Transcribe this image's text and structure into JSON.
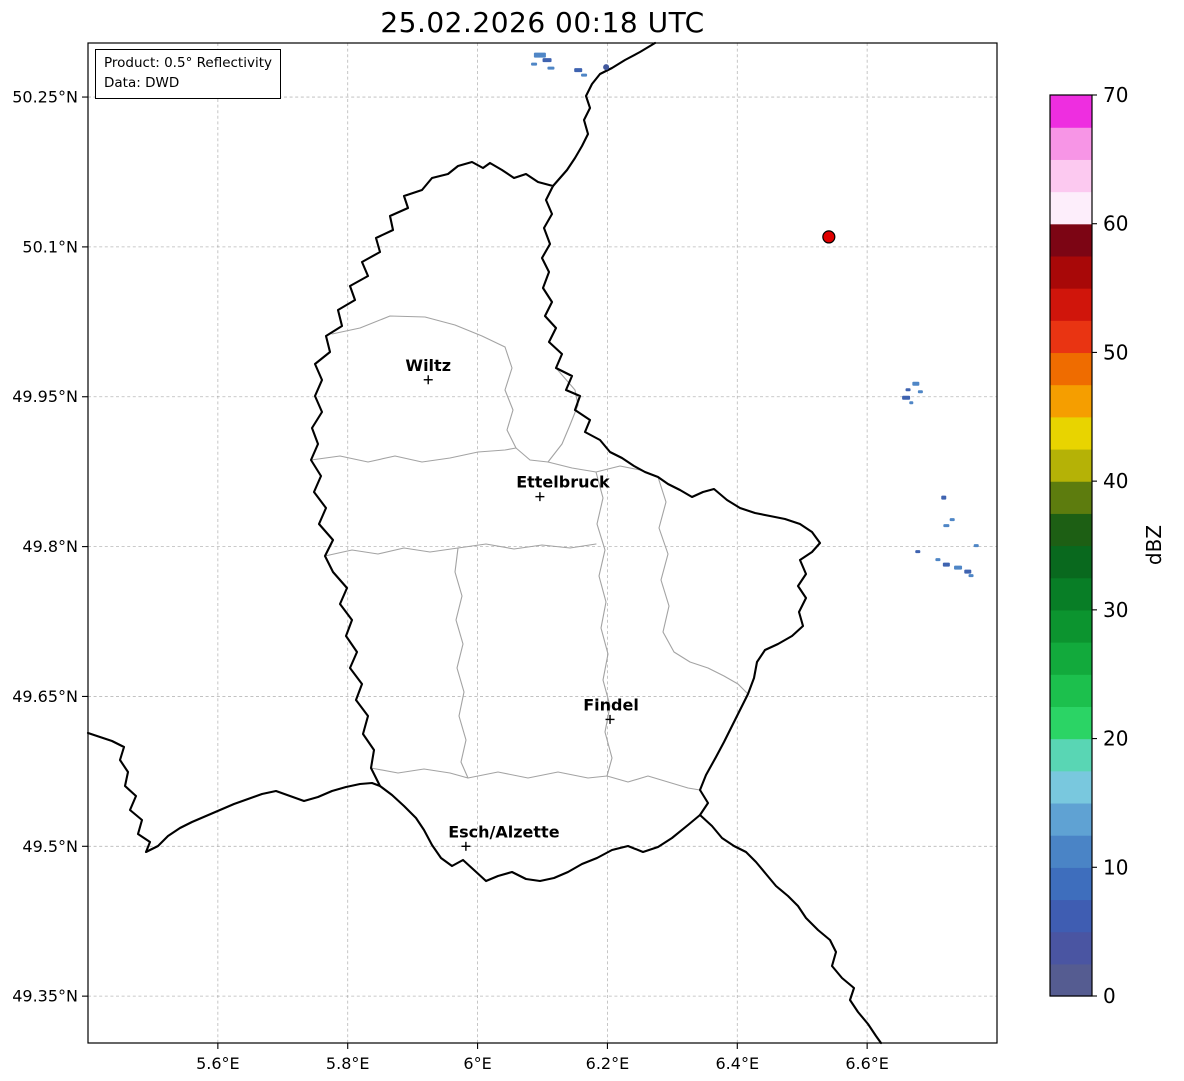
{
  "title": "25.02.2026 00:18 UTC",
  "info_box": {
    "product": "Product: 0.5° Reflectivity",
    "data_source": "Data: DWD"
  },
  "map": {
    "extent": {
      "lon_min": 5.4,
      "lon_max": 6.8,
      "lat_min": 49.3031,
      "lat_max": 50.3041
    },
    "x_ticks": [
      {
        "lon": 5.6,
        "label": "5.6°E"
      },
      {
        "lon": 5.8,
        "label": "5.8°E"
      },
      {
        "lon": 6.0,
        "label": "6°E"
      },
      {
        "lon": 6.2,
        "label": "6.2°E"
      },
      {
        "lon": 6.4,
        "label": "6.4°E"
      },
      {
        "lon": 6.6,
        "label": "6.6°E"
      }
    ],
    "y_ticks": [
      {
        "lat": 50.25,
        "label": "50.25°N"
      },
      {
        "lat": 50.1,
        "label": "50.1°N"
      },
      {
        "lat": 49.95,
        "label": "49.95°N"
      },
      {
        "lat": 49.8,
        "label": "49.8°N"
      },
      {
        "lat": 49.65,
        "label": "49.65°N"
      },
      {
        "lat": 49.5,
        "label": "49.5°N"
      },
      {
        "lat": 49.35,
        "label": "49.35°N"
      }
    ],
    "cities": [
      {
        "name": "Wiltz",
        "lon": 5.924,
        "lat": 49.967,
        "label_dx": 0
      },
      {
        "name": "Ettelbruck",
        "lon": 6.096,
        "lat": 49.85,
        "label_dx": 23
      },
      {
        "name": "Findel",
        "lon": 6.204,
        "lat": 49.627,
        "label_dx": 1
      },
      {
        "name": "Esch/Alzette",
        "lon": 5.982,
        "lat": 49.5,
        "label_dx": 38
      }
    ],
    "radar_site": {
      "lon": 6.541,
      "lat": 50.11,
      "color": "#e00000"
    },
    "echoes": [
      {
        "lon": 6.096,
        "lat": 50.292,
        "w": 12,
        "h": 5,
        "color": "#4f86c6"
      },
      {
        "lon": 6.107,
        "lat": 50.287,
        "w": 9,
        "h": 4,
        "color": "#3f63b0"
      },
      {
        "lon": 6.087,
        "lat": 50.283,
        "w": 6,
        "h": 3,
        "color": "#4f86c6"
      },
      {
        "lon": 6.113,
        "lat": 50.279,
        "w": 7,
        "h": 3,
        "color": "#4f86c6"
      },
      {
        "lon": 6.155,
        "lat": 50.277,
        "w": 8,
        "h": 4,
        "color": "#3f63b0"
      },
      {
        "lon": 6.164,
        "lat": 50.272,
        "w": 6,
        "h": 3,
        "color": "#4f86c6"
      },
      {
        "lon": 6.198,
        "lat": 50.28,
        "w": 6,
        "h": 6,
        "color": "#42599e",
        "round": true
      },
      {
        "lon": 6.675,
        "lat": 49.963,
        "w": 7,
        "h": 4,
        "color": "#4f86c6"
      },
      {
        "lon": 6.663,
        "lat": 49.957,
        "w": 5,
        "h": 3,
        "color": "#3f63b0"
      },
      {
        "lon": 6.682,
        "lat": 49.955,
        "w": 5,
        "h": 3,
        "color": "#4f86c6"
      },
      {
        "lon": 6.66,
        "lat": 49.949,
        "w": 8,
        "h": 4,
        "color": "#3f63b0"
      },
      {
        "lon": 6.668,
        "lat": 49.944,
        "w": 4,
        "h": 3,
        "color": "#4f86c6"
      },
      {
        "lon": 6.718,
        "lat": 49.849,
        "w": 5,
        "h": 4,
        "color": "#3f63b0"
      },
      {
        "lon": 6.731,
        "lat": 49.827,
        "w": 5,
        "h": 3,
        "color": "#4f86c6"
      },
      {
        "lon": 6.722,
        "lat": 49.821,
        "w": 6,
        "h": 3,
        "color": "#4f86c6"
      },
      {
        "lon": 6.678,
        "lat": 49.795,
        "w": 5,
        "h": 3,
        "color": "#3f63b0"
      },
      {
        "lon": 6.709,
        "lat": 49.787,
        "w": 5,
        "h": 3,
        "color": "#4f86c6"
      },
      {
        "lon": 6.722,
        "lat": 49.782,
        "w": 7,
        "h": 4,
        "color": "#3f63b0"
      },
      {
        "lon": 6.74,
        "lat": 49.779,
        "w": 8,
        "h": 4,
        "color": "#4f86c6"
      },
      {
        "lon": 6.755,
        "lat": 49.775,
        "w": 7,
        "h": 4,
        "color": "#3f63b0"
      },
      {
        "lon": 6.768,
        "lat": 49.801,
        "w": 5,
        "h": 3,
        "color": "#4f86c6"
      },
      {
        "lon": 6.76,
        "lat": 49.771,
        "w": 5,
        "h": 3,
        "color": "#4f86c6"
      }
    ]
  },
  "colorbar": {
    "label": "dBZ",
    "unit_min": 0,
    "unit_max": 70,
    "ticks": [
      0,
      10,
      20,
      30,
      40,
      50,
      60,
      70
    ],
    "colors": [
      "#555c91",
      "#4a55a2",
      "#3f5db2",
      "#3e6ebd",
      "#4a84c6",
      "#5fa2d3",
      "#79c8de",
      "#59d6b4",
      "#2bd465",
      "#1cc04d",
      "#12aa3c",
      "#0c942f",
      "#087e26",
      "#09691e",
      "#1d5f14",
      "#5d7c0e",
      "#b5b206",
      "#e8d400",
      "#f59e00",
      "#ef6c00",
      "#e93412",
      "#d0150b",
      "#a80808",
      "#7c0514",
      "#fdeefb",
      "#fcc9f0",
      "#f795e6",
      "#ee2ee0"
    ]
  }
}
